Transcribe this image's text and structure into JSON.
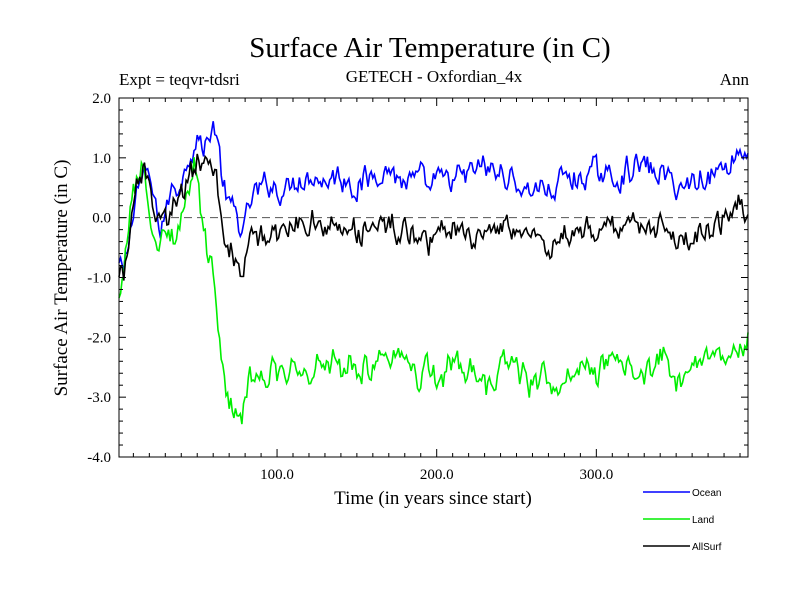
{
  "chart_data": {
    "type": "line",
    "title": "Surface Air Temperature (in C)",
    "subtitle": "GETECH - Oxfordian_4x",
    "left_label": "Expt = teqvr-tdsri",
    "right_label": "Ann",
    "xlabel": "Time (in years since start)",
    "ylabel": "Surface Air Temperature (in C)",
    "xlim": [
      1,
      395
    ],
    "ylim": [
      -4.0,
      2.0
    ],
    "x_ticks": [
      100,
      200,
      300
    ],
    "x_tick_labels": [
      "100.0",
      "200.0",
      "300.0"
    ],
    "y_ticks": [
      2.0,
      1.0,
      0.0,
      -1.0,
      -2.0,
      -3.0,
      -4.0
    ],
    "y_tick_labels": [
      "2.0",
      "1.0",
      "0.0",
      "-1.0",
      "-2.0",
      "-3.0",
      "-4.0"
    ],
    "reference_line": 0.0,
    "legend_position": "bottom-right",
    "series": [
      {
        "name": "Ocean",
        "color": "#0000ff",
        "keypoints": [
          [
            1,
            -0.8
          ],
          [
            4,
            -1.0
          ],
          [
            8,
            -0.3
          ],
          [
            12,
            0.5
          ],
          [
            16,
            0.7
          ],
          [
            20,
            0.6
          ],
          [
            24,
            0.1
          ],
          [
            27,
            -0.2
          ],
          [
            30,
            0.1
          ],
          [
            35,
            0.5
          ],
          [
            40,
            0.6
          ],
          [
            45,
            1.1
          ],
          [
            50,
            1.4
          ],
          [
            53,
            1.1
          ],
          [
            57,
            1.3
          ],
          [
            60,
            1.6
          ],
          [
            63,
            1.2
          ],
          [
            66,
            0.6
          ],
          [
            70,
            0.2
          ],
          [
            75,
            0.0
          ],
          [
            80,
            -0.1
          ],
          [
            85,
            0.3
          ],
          [
            90,
            0.5
          ],
          [
            95,
            0.6
          ],
          [
            100,
            0.4
          ],
          [
            110,
            0.6
          ],
          [
            120,
            0.7
          ],
          [
            130,
            0.6
          ],
          [
            140,
            0.7
          ],
          [
            150,
            0.5
          ],
          [
            160,
            0.7
          ],
          [
            170,
            0.8
          ],
          [
            180,
            0.6
          ],
          [
            190,
            0.7
          ],
          [
            195,
            0.4
          ],
          [
            200,
            0.6
          ],
          [
            210,
            0.6
          ],
          [
            220,
            0.7
          ],
          [
            230,
            0.8
          ],
          [
            240,
            0.7
          ],
          [
            250,
            0.6
          ],
          [
            260,
            0.5
          ],
          [
            270,
            0.4
          ],
          [
            280,
            0.7
          ],
          [
            290,
            0.6
          ],
          [
            300,
            0.8
          ],
          [
            310,
            0.6
          ],
          [
            320,
            0.8
          ],
          [
            330,
            0.9
          ],
          [
            340,
            0.7
          ],
          [
            350,
            0.6
          ],
          [
            360,
            0.6
          ],
          [
            370,
            0.7
          ],
          [
            380,
            0.8
          ],
          [
            390,
            1.1
          ],
          [
            395,
            1.0
          ]
        ]
      },
      {
        "name": "Land",
        "color": "#00ee00",
        "keypoints": [
          [
            1,
            -1.5
          ],
          [
            4,
            -1.0
          ],
          [
            8,
            0.1
          ],
          [
            12,
            0.6
          ],
          [
            15,
            0.9
          ],
          [
            18,
            0.3
          ],
          [
            22,
            -0.5
          ],
          [
            26,
            -0.6
          ],
          [
            30,
            -0.2
          ],
          [
            35,
            -0.4
          ],
          [
            40,
            -0.2
          ],
          [
            44,
            0.3
          ],
          [
            48,
            0.9
          ],
          [
            52,
            0.1
          ],
          [
            56,
            -0.5
          ],
          [
            59,
            -0.8
          ],
          [
            62,
            -1.8
          ],
          [
            65,
            -2.3
          ],
          [
            68,
            -2.9
          ],
          [
            72,
            -3.2
          ],
          [
            76,
            -3.3
          ],
          [
            80,
            -2.9
          ],
          [
            85,
            -2.8
          ],
          [
            90,
            -2.6
          ],
          [
            100,
            -2.7
          ],
          [
            110,
            -2.5
          ],
          [
            120,
            -2.6
          ],
          [
            130,
            -2.4
          ],
          [
            140,
            -2.6
          ],
          [
            150,
            -2.5
          ],
          [
            160,
            -2.6
          ],
          [
            170,
            -2.4
          ],
          [
            180,
            -2.3
          ],
          [
            190,
            -2.6
          ],
          [
            200,
            -2.7
          ],
          [
            210,
            -2.5
          ],
          [
            220,
            -2.6
          ],
          [
            230,
            -2.9
          ],
          [
            240,
            -2.6
          ],
          [
            250,
            -2.5
          ],
          [
            260,
            -2.7
          ],
          [
            270,
            -2.9
          ],
          [
            280,
            -2.6
          ],
          [
            290,
            -2.5
          ],
          [
            300,
            -2.6
          ],
          [
            310,
            -2.4
          ],
          [
            320,
            -2.5
          ],
          [
            330,
            -2.6
          ],
          [
            340,
            -2.4
          ],
          [
            350,
            -2.6
          ],
          [
            360,
            -2.5
          ],
          [
            370,
            -2.3
          ],
          [
            380,
            -2.5
          ],
          [
            390,
            -2.3
          ],
          [
            395,
            -2.2
          ]
        ]
      },
      {
        "name": "AllSurf",
        "color": "#000000",
        "keypoints": [
          [
            1,
            -0.9
          ],
          [
            4,
            -1.0
          ],
          [
            8,
            -0.2
          ],
          [
            12,
            0.5
          ],
          [
            16,
            0.7
          ],
          [
            20,
            0.5
          ],
          [
            24,
            0.0
          ],
          [
            28,
            -0.1
          ],
          [
            32,
            0.0
          ],
          [
            36,
            0.3
          ],
          [
            40,
            0.4
          ],
          [
            45,
            0.8
          ],
          [
            50,
            1.0
          ],
          [
            54,
            0.8
          ],
          [
            58,
            1.0
          ],
          [
            61,
            0.8
          ],
          [
            64,
            0.3
          ],
          [
            67,
            -0.3
          ],
          [
            70,
            -0.6
          ],
          [
            74,
            -0.7
          ],
          [
            78,
            -0.8
          ],
          [
            82,
            -0.4
          ],
          [
            88,
            -0.3
          ],
          [
            95,
            -0.2
          ],
          [
            100,
            -0.3
          ],
          [
            110,
            -0.2
          ],
          [
            120,
            -0.1
          ],
          [
            130,
            -0.2
          ],
          [
            140,
            -0.1
          ],
          [
            150,
            -0.2
          ],
          [
            160,
            -0.2
          ],
          [
            170,
            -0.1
          ],
          [
            180,
            -0.2
          ],
          [
            190,
            -0.3
          ],
          [
            195,
            -0.5
          ],
          [
            200,
            -0.3
          ],
          [
            210,
            -0.2
          ],
          [
            220,
            -0.3
          ],
          [
            230,
            -0.5
          ],
          [
            240,
            -0.2
          ],
          [
            250,
            -0.2
          ],
          [
            260,
            -0.4
          ],
          [
            270,
            -0.5
          ],
          [
            280,
            -0.2
          ],
          [
            290,
            -0.3
          ],
          [
            300,
            -0.1
          ],
          [
            310,
            -0.2
          ],
          [
            320,
            0.0
          ],
          [
            330,
            -0.1
          ],
          [
            340,
            -0.2
          ],
          [
            350,
            -0.2
          ],
          [
            360,
            -0.3
          ],
          [
            370,
            -0.2
          ],
          [
            380,
            -0.1
          ],
          [
            390,
            0.2
          ],
          [
            395,
            0.1
          ]
        ]
      }
    ]
  }
}
